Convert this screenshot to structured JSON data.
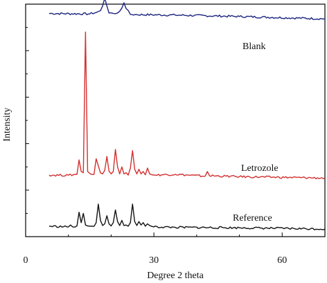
{
  "chart_data": {
    "type": "line",
    "title": "",
    "xlabel": "Degree 2 theta",
    "ylabel": "Intensity",
    "xlim": [
      0,
      70
    ],
    "ylim": [
      0,
      100
    ],
    "xticks": [
      0,
      30,
      60
    ],
    "grid": false,
    "legend": "none",
    "series": [
      {
        "name": "Blank",
        "color": "#1a237e",
        "baseline": 96,
        "slope": -0.016,
        "x": [
          5.5,
          15,
          16.5,
          17.5,
          18.0,
          18.5,
          19.0,
          19.5,
          20.5,
          21.5,
          22.5,
          23.0,
          23.5,
          24.5,
          26,
          35,
          50,
          70
        ],
        "y": [
          96.0,
          95.8,
          96.4,
          97.2,
          99.2,
          102.6,
          99.2,
          96.2,
          96.0,
          96.2,
          98.3,
          100.6,
          98.1,
          95.6,
          95.5,
          95.3,
          94.7,
          93.7
        ]
      },
      {
        "name": "Letrozole",
        "color": "#d32f2f",
        "baseline": 26.5,
        "slope": -0.014,
        "x": [
          5.5,
          10,
          12.0,
          12.5,
          13.0,
          13.5,
          14.0,
          14.5,
          15.0,
          16.0,
          16.5,
          17.0,
          17.5,
          18.0,
          18.5,
          19.0,
          19.5,
          20.0,
          20.5,
          21.0,
          21.5,
          22.0,
          22.5,
          23.0,
          23.5,
          24.0,
          24.5,
          25.0,
          25.5,
          26.0,
          26.5,
          27.0,
          27.5,
          28.0,
          28.5,
          29.0,
          29.5,
          30.0,
          35.0,
          42.0,
          42.5,
          43.0,
          50,
          70
        ],
        "y": [
          26.5,
          26.4,
          26.8,
          33.0,
          28.0,
          27.5,
          88.0,
          28.0,
          27.2,
          26.8,
          33.5,
          30.5,
          27.4,
          27.0,
          28.5,
          34.5,
          28.2,
          27.0,
          28.0,
          37.5,
          30.0,
          27.0,
          30.0,
          27.0,
          27.5,
          26.5,
          29.5,
          37.0,
          29.0,
          27.0,
          29.0,
          27.0,
          28.0,
          26.6,
          29.5,
          27.0,
          26.6,
          26.5,
          26.8,
          26.0,
          28.0,
          26.2,
          25.8,
          25.2
        ]
      },
      {
        "name": "Reference",
        "color": "#111111",
        "baseline": 4.5,
        "slope": -0.012,
        "x": [
          5.5,
          10,
          10.5,
          11,
          12.0,
          12.5,
          13.0,
          13.5,
          14.0,
          14.5,
          15.0,
          16.0,
          16.5,
          17.0,
          17.5,
          18.0,
          18.5,
          19.0,
          19.5,
          20.0,
          20.5,
          21.0,
          21.5,
          22.0,
          22.5,
          23.0,
          23.5,
          24.0,
          24.5,
          25.0,
          25.5,
          26.0,
          26.5,
          27.0,
          27.5,
          28.0,
          28.5,
          29.0,
          29.5,
          30.0,
          35.0,
          50,
          70
        ],
        "y": [
          4.5,
          4.2,
          5.0,
          4.2,
          4.6,
          10.5,
          6.0,
          10.0,
          5.0,
          4.6,
          4.5,
          4.4,
          6.0,
          14.0,
          7.0,
          4.8,
          5.5,
          9.0,
          5.5,
          4.6,
          6.0,
          11.5,
          6.5,
          4.8,
          7.0,
          4.8,
          5.0,
          4.5,
          6.0,
          14.0,
          6.5,
          4.8,
          6.5,
          5.0,
          6.0,
          4.5,
          5.5,
          4.8,
          4.4,
          4.2,
          4.0,
          3.8,
          3.3
        ]
      }
    ]
  },
  "labels": {
    "blank": "Blank",
    "letrozole": "Letrozole",
    "reference": "Reference"
  }
}
